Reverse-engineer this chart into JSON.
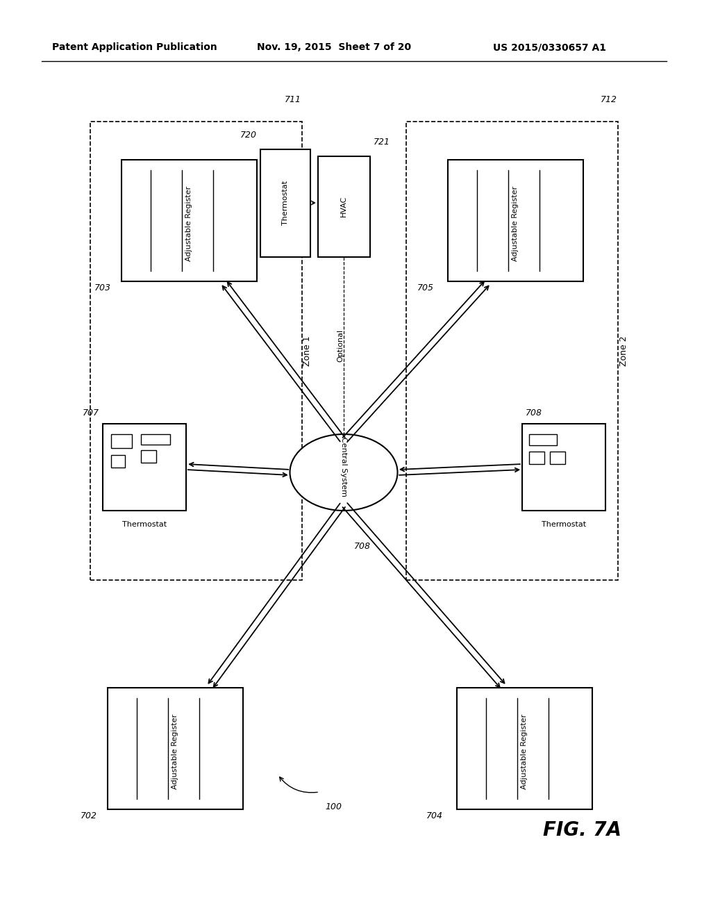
{
  "title_left": "Patent Application Publication",
  "title_mid": "Nov. 19, 2015  Sheet 7 of 20",
  "title_right": "US 2015/0330657 A1",
  "fig_label": "FIG. 7A",
  "ref_100": "100",
  "background": "#ffffff",
  "central_system_label": "Central System",
  "optional_label": "Optional",
  "zone1_label": "Zone 1",
  "zone2_label": "Zone 2",
  "thermostat_label_720": "Thermostat",
  "hvac_label_721": "HVAC",
  "reg_703": "Adjustable Register",
  "reg_702": "Adjustable Register",
  "reg_704": "Adjustable Register",
  "reg_705": "Adjustable Register",
  "thermo_707": "Thermostat",
  "thermo_708": "Thermostat",
  "ref_711": "711",
  "ref_712": "712",
  "ref_720": "720",
  "ref_721": "721",
  "ref_703": "703",
  "ref_705": "705",
  "ref_702": "702",
  "ref_704": "704",
  "ref_707": "707",
  "ref_708": "708",
  "ref_708b": "708"
}
